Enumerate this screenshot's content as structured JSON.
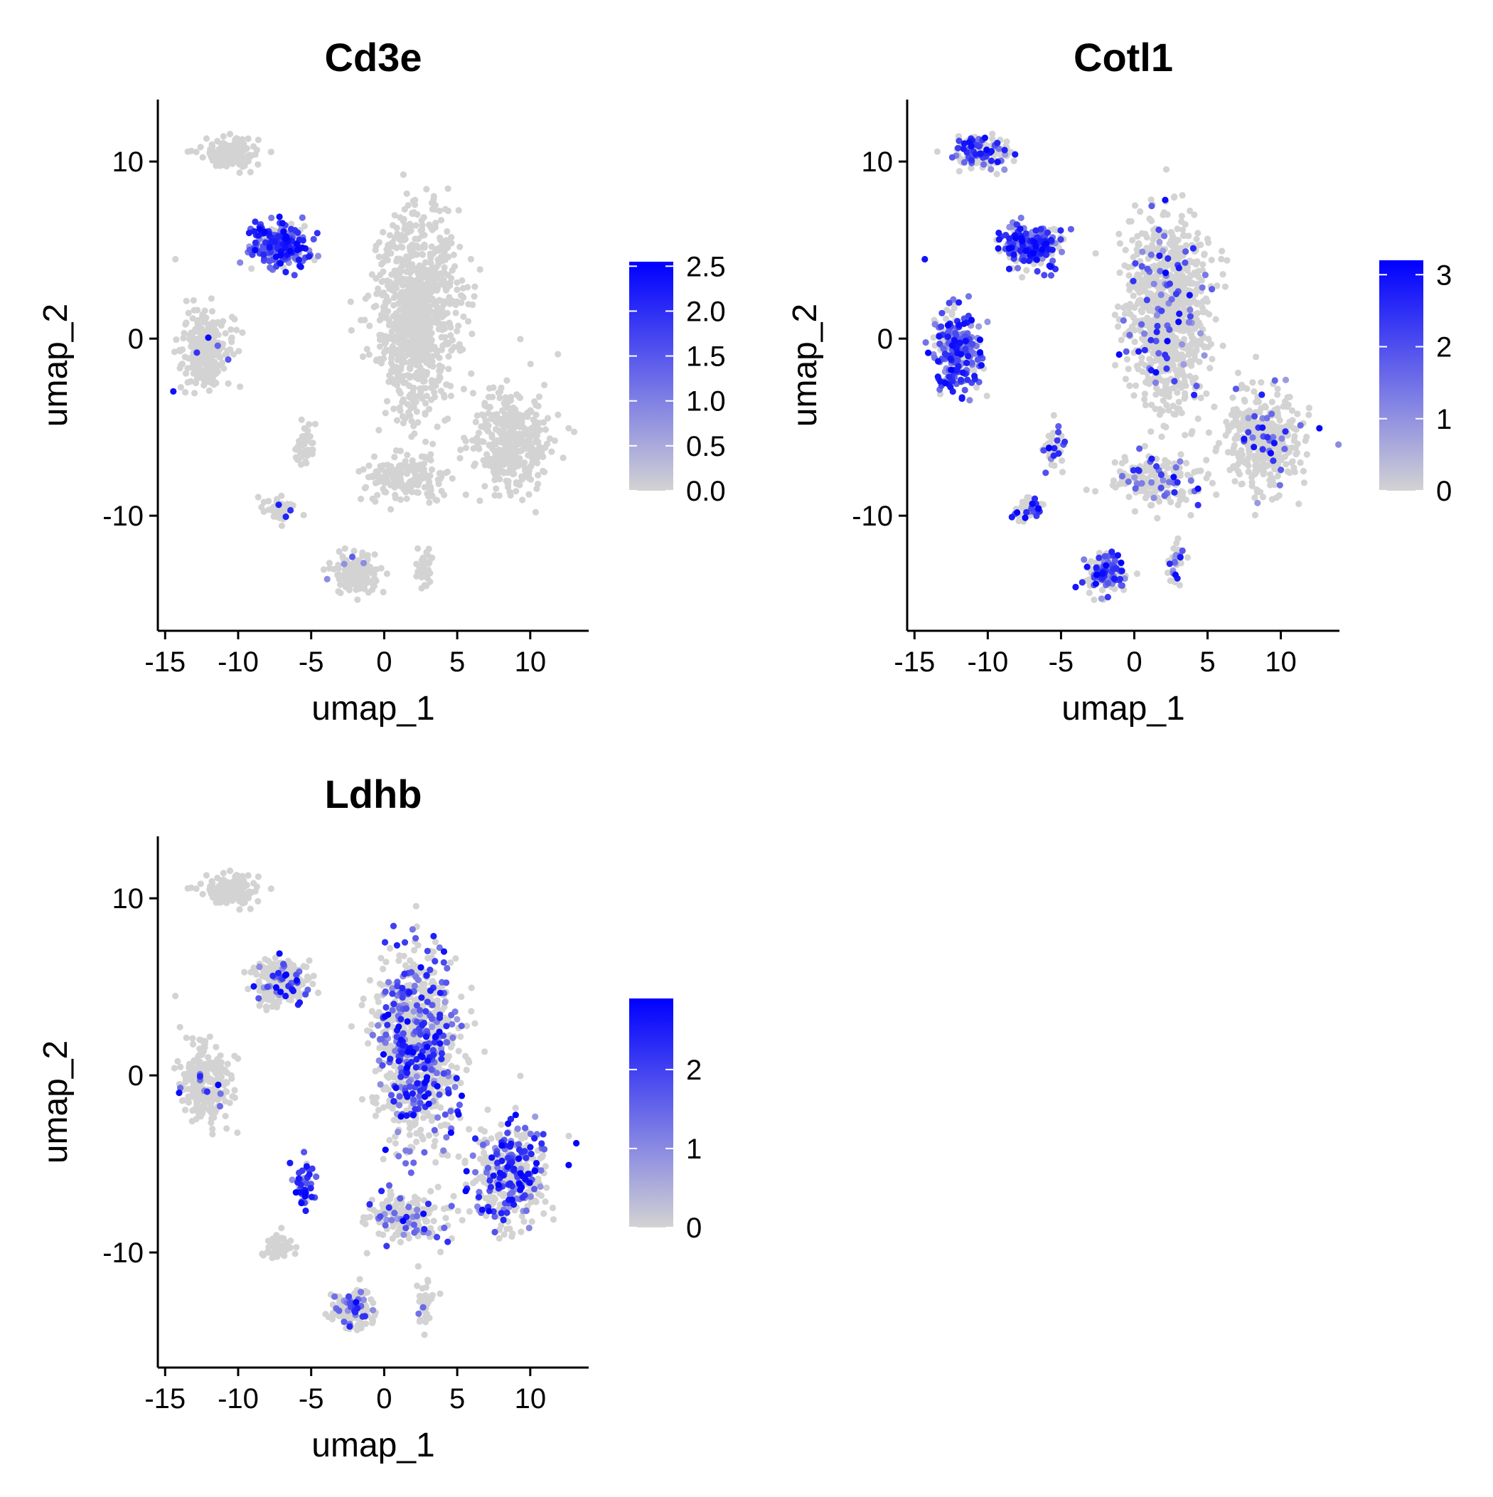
{
  "colors": {
    "low": "#d3d3d3",
    "high": "#0000ff",
    "axis": "#000000",
    "background": "#ffffff"
  },
  "chart_data": [
    {
      "type": "scatter",
      "title": "Cd3e",
      "xlabel": "umap_1",
      "ylabel": "umap_2",
      "xlim": [
        -15.5,
        14
      ],
      "ylim": [
        -16.5,
        13.5
      ],
      "x_ticks": [
        -15,
        -10,
        -5,
        0,
        5,
        10
      ],
      "y_ticks": [
        -10,
        0,
        10
      ],
      "x_tick_labels": [
        "-15",
        "-10",
        "-5",
        "0",
        "5",
        "10"
      ],
      "y_tick_labels": [
        "-10",
        "0",
        "10"
      ],
      "legend": {
        "position": "right",
        "min": 0,
        "max": 2.55,
        "ticks": [
          0.0,
          0.5,
          1.0,
          1.5,
          2.0,
          2.5
        ],
        "tick_labels": [
          "0.0",
          "0.5",
          "1.0",
          "1.5",
          "2.0",
          "2.5"
        ]
      },
      "clusters": [
        {
          "id": "top-left-blob",
          "center": [
            -10.5,
            10.5
          ],
          "spread": [
            1.8,
            0.8
          ],
          "n": 140,
          "expr": 0.0
        },
        {
          "id": "upper-triangle",
          "center": [
            -7.2,
            5.3
          ],
          "spread": [
            1.7,
            1.1
          ],
          "n": 260,
          "expr": 0.85
        },
        {
          "id": "left-blob",
          "center": [
            -12.2,
            -0.6
          ],
          "spread": [
            1.5,
            2.0
          ],
          "n": 260,
          "expr": 0.03
        },
        {
          "id": "central-large",
          "center": [
            2.2,
            1.5
          ],
          "spread": [
            2.6,
            4.8
          ],
          "n": 900,
          "expr": 0.0
        },
        {
          "id": "right-elongated",
          "center": [
            8.7,
            -5.7
          ],
          "spread": [
            2.4,
            2.6
          ],
          "n": 380,
          "expr": 0.0
        },
        {
          "id": "small-mid-left",
          "center": [
            -5.5,
            -6.2
          ],
          "spread": [
            0.6,
            1.0
          ],
          "n": 50,
          "expr": 0.0
        },
        {
          "id": "small-lower-left",
          "center": [
            -7.2,
            -9.7
          ],
          "spread": [
            0.9,
            0.6
          ],
          "n": 50,
          "expr": 0.03
        },
        {
          "id": "bridge",
          "center": [
            1.5,
            -8.0
          ],
          "spread": [
            2.8,
            1.2
          ],
          "n": 170,
          "expr": 0.0
        },
        {
          "id": "bottom-blob",
          "center": [
            -2.0,
            -13.2
          ],
          "spread": [
            1.3,
            1.0
          ],
          "n": 170,
          "expr": 0.03
        },
        {
          "id": "bottom-right-thin",
          "center": [
            2.8,
            -12.8
          ],
          "spread": [
            0.5,
            1.2
          ],
          "n": 35,
          "expr": 0.0
        }
      ]
    },
    {
      "type": "scatter",
      "title": "Cotl1",
      "xlabel": "umap_1",
      "ylabel": "umap_2",
      "xlim": [
        -15.5,
        14
      ],
      "ylim": [
        -16.5,
        13.5
      ],
      "x_ticks": [
        -15,
        -10,
        -5,
        0,
        5,
        10
      ],
      "y_ticks": [
        -10,
        0,
        10
      ],
      "x_tick_labels": [
        "-15",
        "-10",
        "-5",
        "0",
        "5",
        "10"
      ],
      "y_tick_labels": [
        "-10",
        "0",
        "10"
      ],
      "legend": {
        "position": "right",
        "min": 0,
        "max": 3.2,
        "ticks": [
          0,
          1,
          2,
          3
        ],
        "tick_labels": [
          "0",
          "1",
          "2",
          "3"
        ]
      },
      "clusters": [
        {
          "id": "top-left-blob",
          "center": [
            -10.5,
            10.5
          ],
          "spread": [
            1.8,
            0.8
          ],
          "n": 140,
          "expr": 0.45
        },
        {
          "id": "upper-triangle",
          "center": [
            -7.2,
            5.3
          ],
          "spread": [
            1.7,
            1.1
          ],
          "n": 260,
          "expr": 0.6
        },
        {
          "id": "left-blob",
          "center": [
            -12.2,
            -0.6
          ],
          "spread": [
            1.5,
            2.0
          ],
          "n": 260,
          "expr": 0.7
        },
        {
          "id": "central-large",
          "center": [
            2.2,
            1.5
          ],
          "spread": [
            2.6,
            4.8
          ],
          "n": 900,
          "expr": 0.08
        },
        {
          "id": "right-elongated",
          "center": [
            8.7,
            -5.7
          ],
          "spread": [
            2.4,
            2.6
          ],
          "n": 380,
          "expr": 0.1
        },
        {
          "id": "small-mid-left",
          "center": [
            -5.5,
            -6.2
          ],
          "spread": [
            0.6,
            1.0
          ],
          "n": 50,
          "expr": 0.35
        },
        {
          "id": "small-lower-left",
          "center": [
            -7.2,
            -9.7
          ],
          "spread": [
            0.9,
            0.6
          ],
          "n": 50,
          "expr": 0.3
        },
        {
          "id": "bridge",
          "center": [
            1.5,
            -8.0
          ],
          "spread": [
            2.8,
            1.2
          ],
          "n": 170,
          "expr": 0.2
        },
        {
          "id": "bottom-blob",
          "center": [
            -2.0,
            -13.2
          ],
          "spread": [
            1.3,
            1.0
          ],
          "n": 170,
          "expr": 0.45
        },
        {
          "id": "bottom-right-thin",
          "center": [
            2.8,
            -12.8
          ],
          "spread": [
            0.5,
            1.2
          ],
          "n": 35,
          "expr": 0.3
        }
      ]
    },
    {
      "type": "scatter",
      "title": "Ldhb",
      "xlabel": "umap_1",
      "ylabel": "umap_2",
      "xlim": [
        -15.5,
        14
      ],
      "ylim": [
        -16.5,
        13.5
      ],
      "x_ticks": [
        -15,
        -10,
        -5,
        0,
        5,
        10
      ],
      "y_ticks": [
        -10,
        0,
        10
      ],
      "x_tick_labels": [
        "-15",
        "-10",
        "-5",
        "0",
        "5",
        "10"
      ],
      "y_tick_labels": [
        "-10",
        "0",
        "10"
      ],
      "legend": {
        "position": "right",
        "min": 0,
        "max": 2.9,
        "ticks": [
          0,
          1,
          2
        ],
        "tick_labels": [
          "0",
          "1",
          "2"
        ]
      },
      "clusters": [
        {
          "id": "top-left-blob",
          "center": [
            -10.5,
            10.5
          ],
          "spread": [
            1.8,
            0.8
          ],
          "n": 140,
          "expr": 0.0
        },
        {
          "id": "upper-triangle",
          "center": [
            -7.2,
            5.3
          ],
          "spread": [
            1.7,
            1.1
          ],
          "n": 260,
          "expr": 0.1
        },
        {
          "id": "left-blob",
          "center": [
            -12.2,
            -0.6
          ],
          "spread": [
            1.5,
            2.0
          ],
          "n": 260,
          "expr": 0.05
        },
        {
          "id": "central-large",
          "center": [
            2.2,
            1.5
          ],
          "spread": [
            2.6,
            4.8
          ],
          "n": 900,
          "expr": 0.35
        },
        {
          "id": "right-elongated",
          "center": [
            8.7,
            -5.7
          ],
          "spread": [
            2.4,
            2.6
          ],
          "n": 380,
          "expr": 0.4
        },
        {
          "id": "small-mid-left",
          "center": [
            -5.5,
            -6.2
          ],
          "spread": [
            0.6,
            1.0
          ],
          "n": 50,
          "expr": 0.8
        },
        {
          "id": "small-lower-left",
          "center": [
            -7.2,
            -9.7
          ],
          "spread": [
            0.9,
            0.6
          ],
          "n": 50,
          "expr": 0.0
        },
        {
          "id": "bridge",
          "center": [
            1.5,
            -8.0
          ],
          "spread": [
            2.8,
            1.2
          ],
          "n": 170,
          "expr": 0.15
        },
        {
          "id": "bottom-blob",
          "center": [
            -2.0,
            -13.2
          ],
          "spread": [
            1.3,
            1.0
          ],
          "n": 170,
          "expr": 0.15
        },
        {
          "id": "bottom-right-thin",
          "center": [
            2.8,
            -12.8
          ],
          "spread": [
            0.5,
            1.2
          ],
          "n": 35,
          "expr": 0.05
        }
      ]
    }
  ]
}
